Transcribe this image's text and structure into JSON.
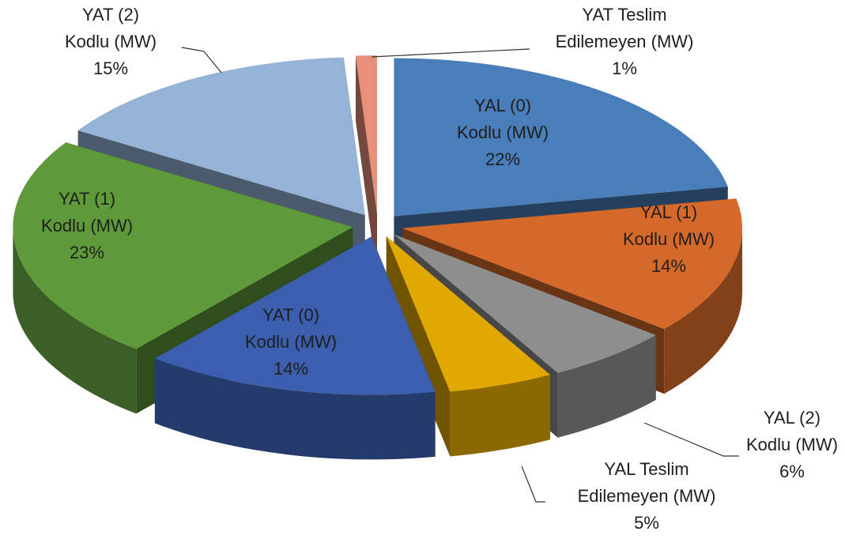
{
  "chart_data": {
    "type": "pie3d",
    "categories": [
      "YAL (0)\nKodlu (MW)",
      "YAL (1)\nKodlu (MW)",
      "YAL (2)\nKodlu (MW)",
      "YAL Teslim\nEdilemeyen (MW)",
      "YAT (0)\nKodlu (MW)",
      "YAT (1)\nKodlu (MW)",
      "YAT (2)\nKodlu (MW)",
      "YAT Teslim\nEdilemeyen (MW)"
    ],
    "values": [
      22,
      14,
      6,
      5,
      14,
      23,
      15,
      1
    ],
    "value_labels": [
      "22%",
      "14%",
      "6%",
      "5%",
      "14%",
      "23%",
      "15%",
      "1%"
    ],
    "colors": [
      "#4a7ebb",
      "#d4692a",
      "#8e8e8e",
      "#e0a800",
      "#3b5fae",
      "#5f9a3a",
      "#95b3d7",
      "#e8907a"
    ]
  }
}
